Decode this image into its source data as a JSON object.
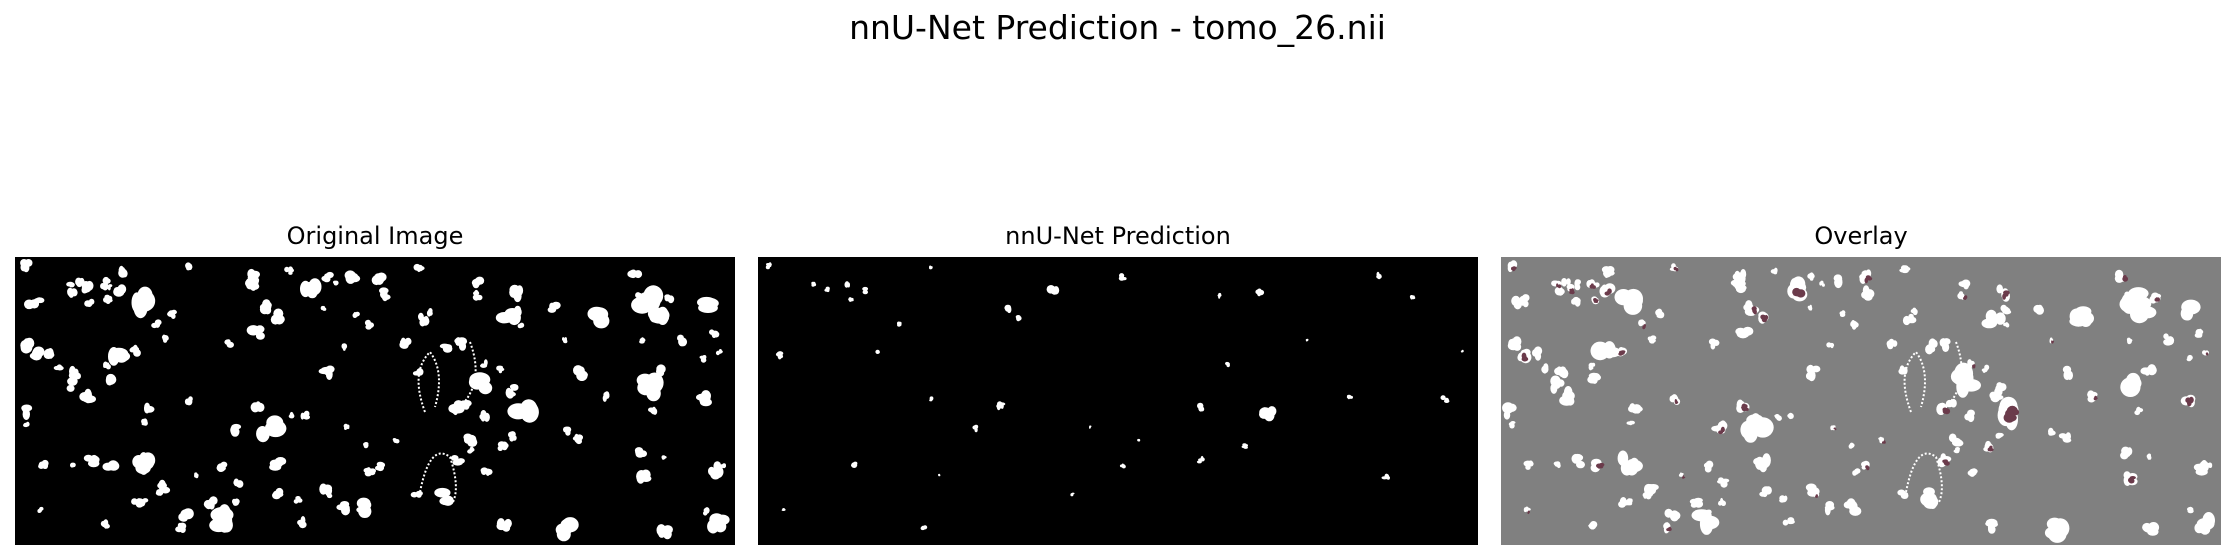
{
  "figure": {
    "suptitle": "nnU-Net Prediction - tomo_26.nii"
  },
  "panels": [
    {
      "title": "Original Image",
      "background": "#000000",
      "blob_color": "#ffffff"
    },
    {
      "title": "nnU-Net Prediction",
      "background": "#000000",
      "blob_color": "#ffffff"
    },
    {
      "title": "Overlay",
      "background": "#808080",
      "blob_color": "#ffffff",
      "prediction_tint": "#6b3b4b"
    }
  ]
}
